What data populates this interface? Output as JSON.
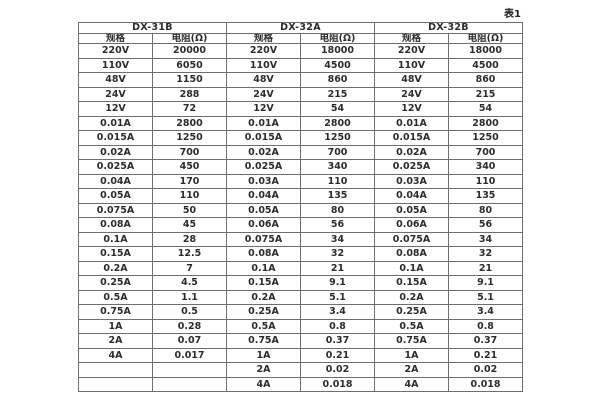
{
  "caption": "表1",
  "table": {
    "sections": [
      {
        "title": "DX-31B",
        "columns": [
          "规格",
          "电阻(Ω)"
        ],
        "rows": [
          [
            "220V",
            "20000"
          ],
          [
            "110V",
            "6050"
          ],
          [
            "48V",
            "1150"
          ],
          [
            "24V",
            "288"
          ],
          [
            "12V",
            "72"
          ],
          [
            "0.01A",
            "2800"
          ],
          [
            "0.015A",
            "1250"
          ],
          [
            "0.02A",
            "700"
          ],
          [
            "0.025A",
            "450"
          ],
          [
            "0.04A",
            "170"
          ],
          [
            "0.05A",
            "110"
          ],
          [
            "0.075A",
            "50"
          ],
          [
            "0.08A",
            "45"
          ],
          [
            "0.1A",
            "28"
          ],
          [
            "0.15A",
            "12.5"
          ],
          [
            "0.2A",
            "7"
          ],
          [
            "0.25A",
            "4.5"
          ],
          [
            "0.5A",
            "1.1"
          ],
          [
            "0.75A",
            "0.5"
          ],
          [
            "1A",
            "0.28"
          ],
          [
            "2A",
            "0.07"
          ],
          [
            "4A",
            "0.017"
          ],
          [
            "",
            ""
          ],
          [
            "",
            ""
          ]
        ]
      },
      {
        "title": "DX-32A",
        "columns": [
          "规格",
          "电阻(Ω)"
        ],
        "rows": [
          [
            "220V",
            "18000"
          ],
          [
            "110V",
            "4500"
          ],
          [
            "48V",
            "860"
          ],
          [
            "24V",
            "215"
          ],
          [
            "12V",
            "54"
          ],
          [
            "0.01A",
            "2800"
          ],
          [
            "0.015A",
            "1250"
          ],
          [
            "0.02A",
            "700"
          ],
          [
            "0.025A",
            "340"
          ],
          [
            "0.03A",
            "110"
          ],
          [
            "0.04A",
            "135"
          ],
          [
            "0.05A",
            "80"
          ],
          [
            "0.06A",
            "56"
          ],
          [
            "0.075A",
            "34"
          ],
          [
            "0.08A",
            "32"
          ],
          [
            "0.1A",
            "21"
          ],
          [
            "0.15A",
            "9.1"
          ],
          [
            "0.2A",
            "5.1"
          ],
          [
            "0.25A",
            "3.4"
          ],
          [
            "0.5A",
            "0.8"
          ],
          [
            "0.75A",
            "0.37"
          ],
          [
            "1A",
            "0.21"
          ],
          [
            "2A",
            "0.02"
          ],
          [
            "4A",
            "0.018"
          ]
        ]
      },
      {
        "title": "DX-32B",
        "columns": [
          "规格",
          "电阻(Ω)"
        ],
        "rows": [
          [
            "220V",
            "18000"
          ],
          [
            "110V",
            "4500"
          ],
          [
            "48V",
            "860"
          ],
          [
            "24V",
            "215"
          ],
          [
            "12V",
            "54"
          ],
          [
            "0.01A",
            "2800"
          ],
          [
            "0.015A",
            "1250"
          ],
          [
            "0.02A",
            "700"
          ],
          [
            "0.025A",
            "340"
          ],
          [
            "0.03A",
            "110"
          ],
          [
            "0.04A",
            "135"
          ],
          [
            "0.05A",
            "80"
          ],
          [
            "0.06A",
            "56"
          ],
          [
            "0.075A",
            "34"
          ],
          [
            "0.08A",
            "32"
          ],
          [
            "0.1A",
            "21"
          ],
          [
            "0.15A",
            "9.1"
          ],
          [
            "0.2A",
            "5.1"
          ],
          [
            "0.25A",
            "3.4"
          ],
          [
            "0.5A",
            "0.8"
          ],
          [
            "0.75A",
            "0.37"
          ],
          [
            "1A",
            "0.21"
          ],
          [
            "2A",
            "0.02"
          ],
          [
            "4A",
            "0.018"
          ]
        ]
      }
    ]
  }
}
